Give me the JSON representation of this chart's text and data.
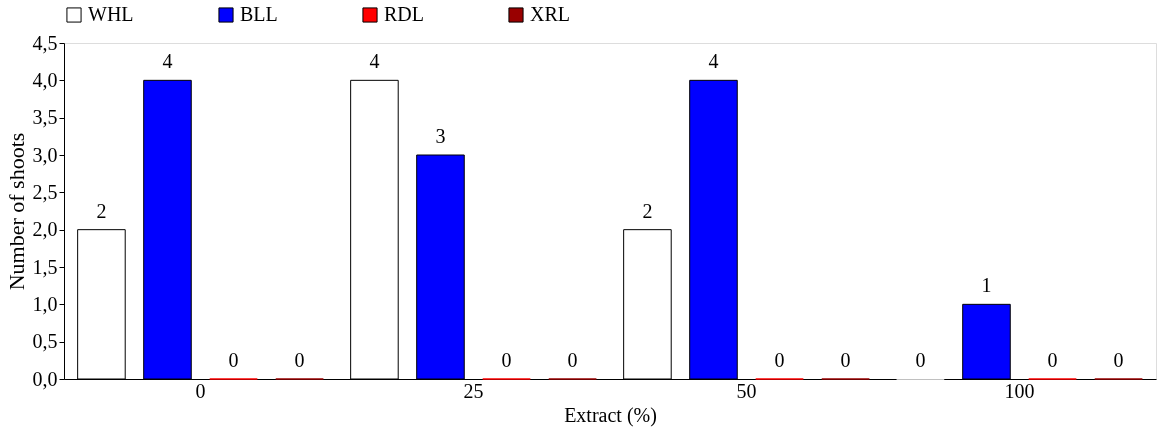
{
  "chart_data": {
    "type": "bar",
    "xlabel": "Extract (%)",
    "ylabel": "Number of shoots",
    "categories": [
      "0",
      "25",
      "50",
      "100"
    ],
    "series": [
      {
        "name": "WHL",
        "color": "#ffffff",
        "values": [
          2,
          4,
          2,
          0
        ]
      },
      {
        "name": "BLL",
        "color": "#0000ff",
        "values": [
          4,
          3,
          4,
          1
        ]
      },
      {
        "name": "RDL",
        "color": "#ff0000",
        "values": [
          0,
          0,
          0,
          0
        ]
      },
      {
        "name": "XRL",
        "color": "#990000",
        "values": [
          0,
          0,
          0,
          0
        ]
      }
    ],
    "ylim": [
      0,
      4.5
    ],
    "yticks": [
      {
        "value": 0,
        "label": "0,0"
      },
      {
        "value": 0.5,
        "label": "0,5"
      },
      {
        "value": 1,
        "label": "1,0"
      },
      {
        "value": 1.5,
        "label": "1,5"
      },
      {
        "value": 2,
        "label": "2,0"
      },
      {
        "value": 2.5,
        "label": "2,5"
      },
      {
        "value": 3,
        "label": "3,0"
      },
      {
        "value": 3.5,
        "label": "3,5"
      },
      {
        "value": 4,
        "label": "4,0"
      },
      {
        "value": 4.5,
        "label": "4,5"
      }
    ],
    "data_labels": true,
    "grid": false,
    "legend": "top"
  }
}
